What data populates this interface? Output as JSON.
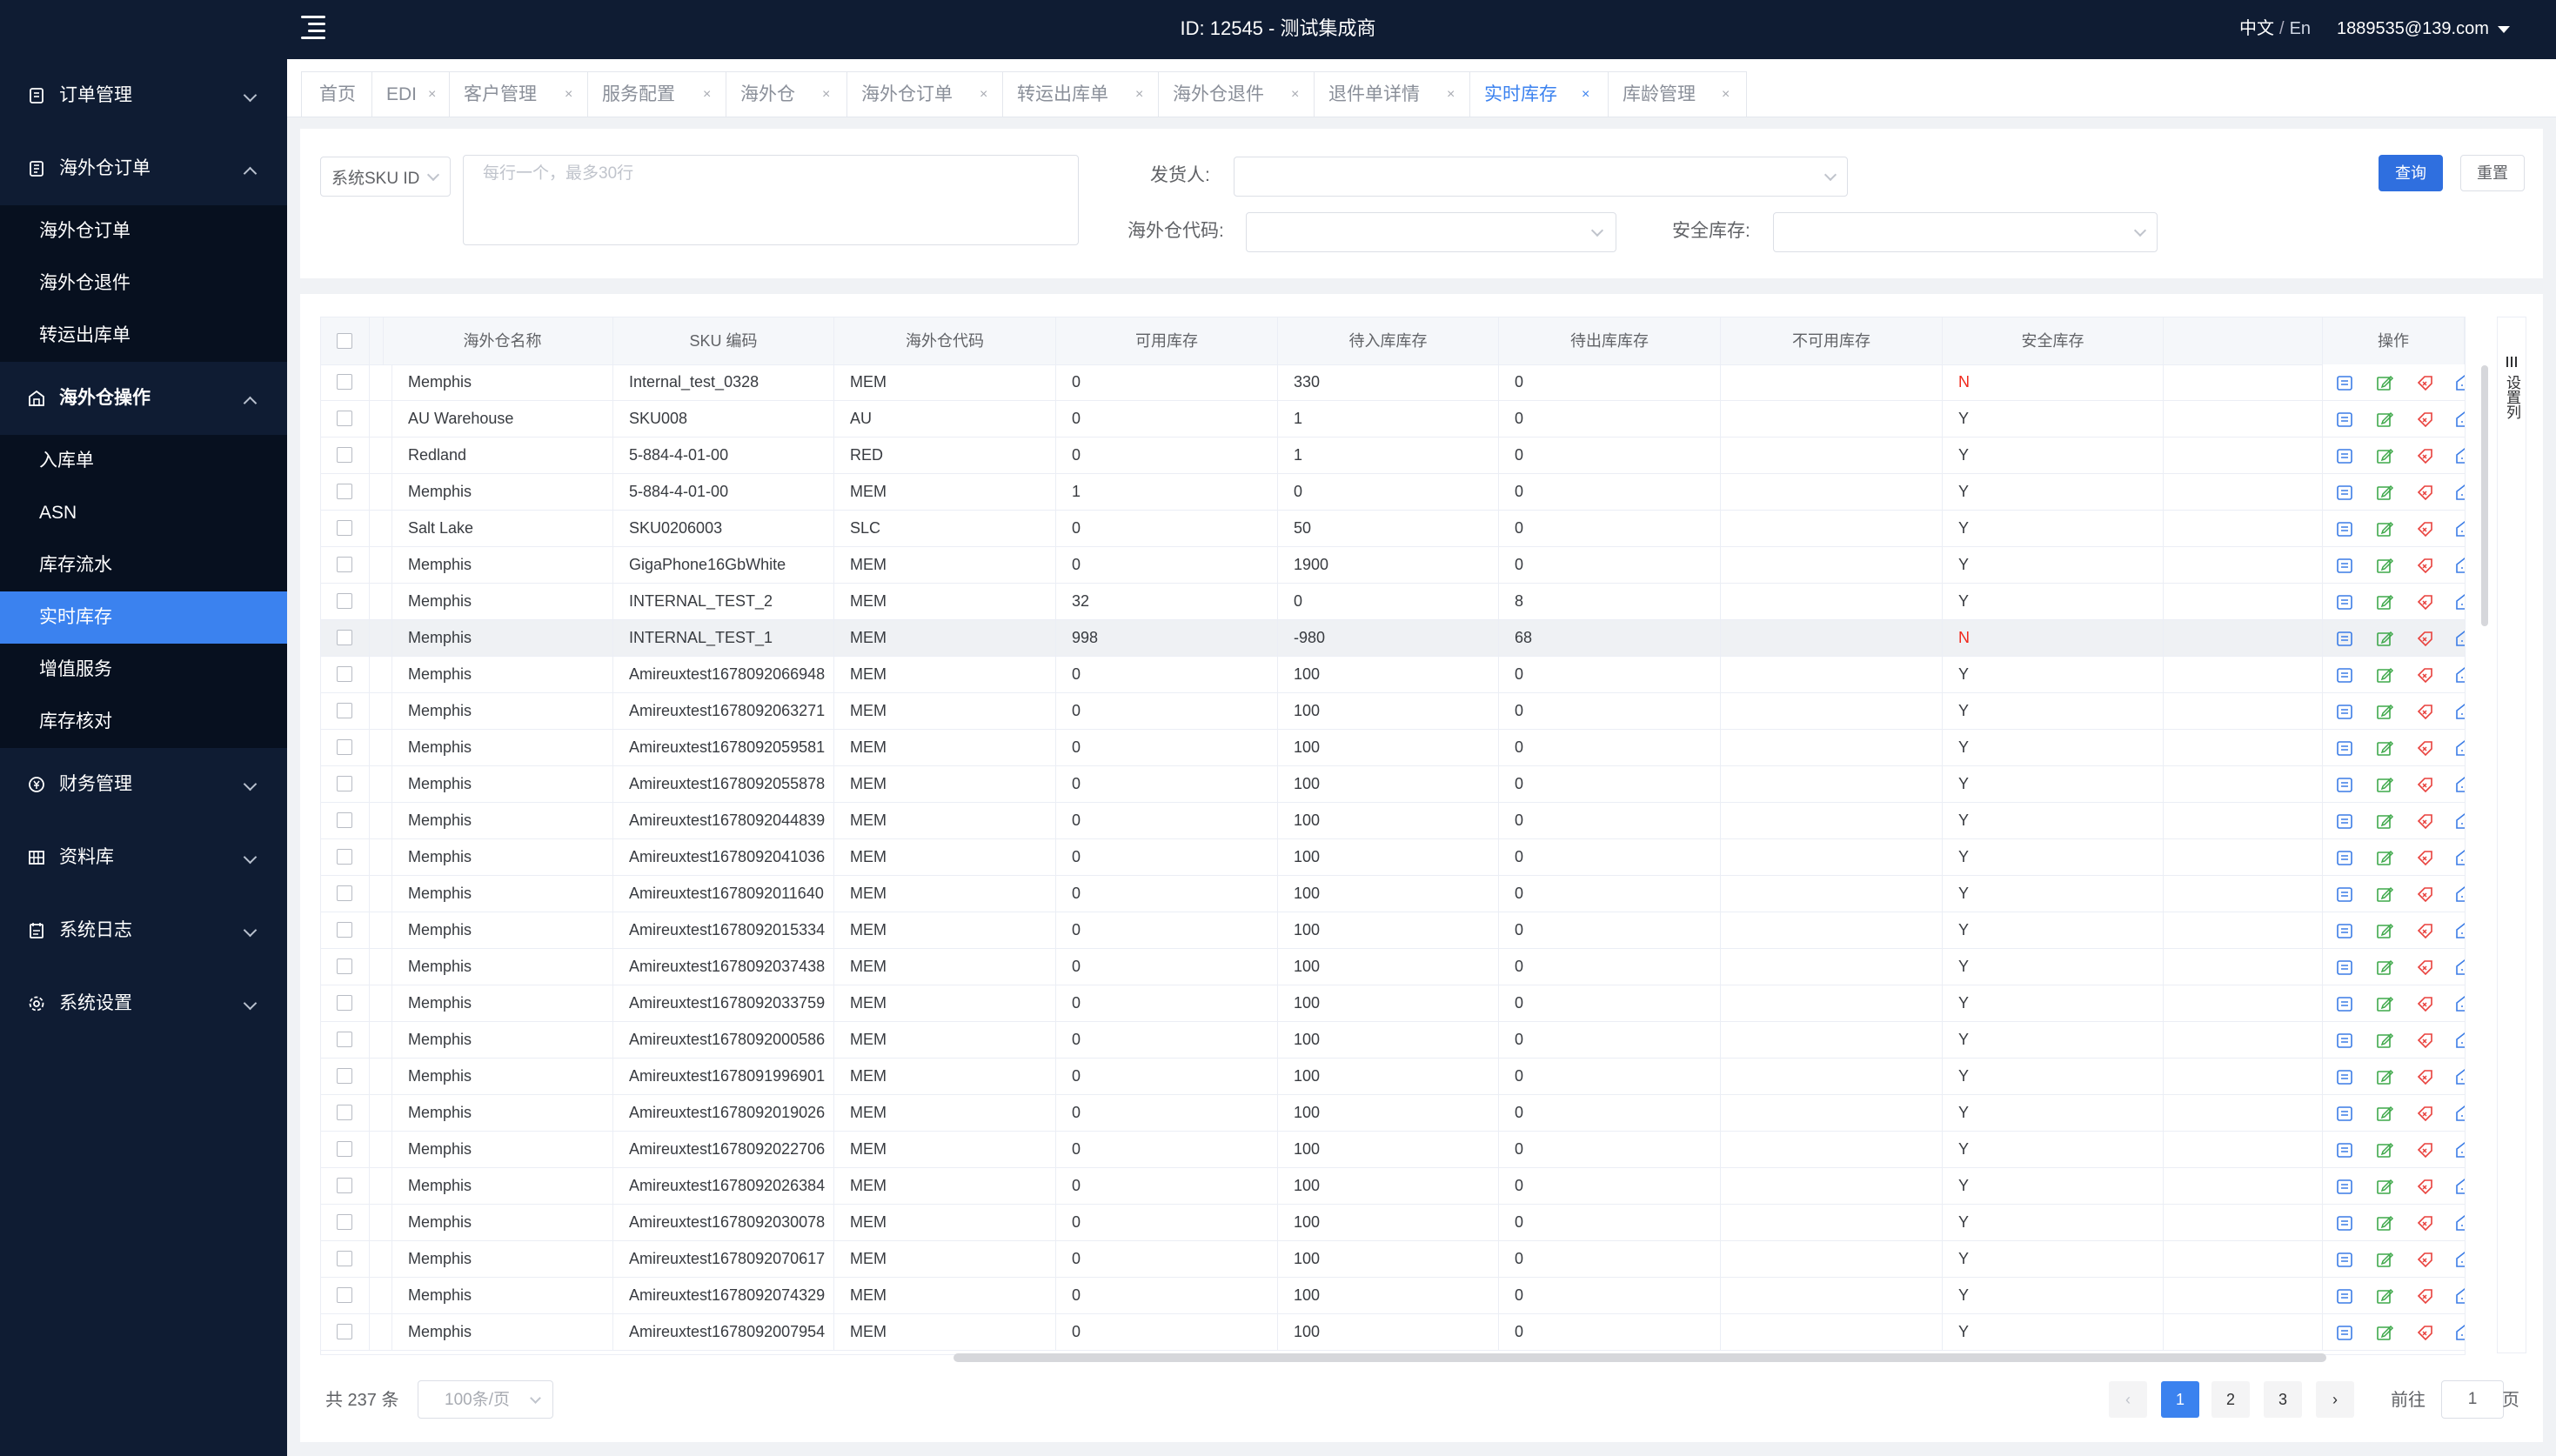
{
  "header": {
    "title": "ID: 12545 - 测试集成商",
    "lang_zh": "中文",
    "lang_sep": "/",
    "lang_en": "En",
    "user": "1889535@139.com"
  },
  "sidebar": {
    "groups": [
      {
        "label": "订单管理",
        "icon": "order-icon",
        "expanded": false
      },
      {
        "label": "海外仓订单",
        "icon": "warehouse-order-icon",
        "expanded": true,
        "items": [
          "海外仓订单",
          "海外仓退件",
          "转运出库单"
        ]
      },
      {
        "label": "海外仓操作",
        "icon": "warehouse-ops-icon",
        "expanded": true,
        "items": [
          "入库单",
          "ASN",
          "库存流水",
          "实时库存",
          "增值服务",
          "库存核对"
        ],
        "active_item": "实时库存"
      },
      {
        "label": "财务管理",
        "icon": "finance-icon",
        "expanded": false
      },
      {
        "label": "资料库",
        "icon": "library-icon",
        "expanded": false
      },
      {
        "label": "系统日志",
        "icon": "log-icon",
        "expanded": false
      },
      {
        "label": "系统设置",
        "icon": "gear-icon",
        "expanded": false
      }
    ]
  },
  "tabs": [
    {
      "label": "首页",
      "closable": false
    },
    {
      "label": "EDI",
      "closable": true
    },
    {
      "label": "客户管理",
      "closable": true
    },
    {
      "label": "服务配置",
      "closable": true
    },
    {
      "label": "海外仓",
      "closable": true
    },
    {
      "label": "海外仓订单",
      "closable": true
    },
    {
      "label": "转运出库单",
      "closable": true
    },
    {
      "label": "海外仓退件",
      "closable": true
    },
    {
      "label": "退件单详情",
      "closable": true
    },
    {
      "label": "实时库存",
      "closable": true,
      "active": true
    },
    {
      "label": "库龄管理",
      "closable": true
    }
  ],
  "tab_close_glyph": "×",
  "filters": {
    "sku_type_value": "系统SKU ID",
    "sku_placeholder": "每行一个，最多30行",
    "shipper_label": "发货人:",
    "warehouse_code_label": "海外仓代码:",
    "safety_stock_label": "安全库存:",
    "query_button": "查询",
    "reset_button": "重置"
  },
  "table": {
    "columns": [
      "海外仓名称",
      "SKU 编码",
      "海外仓代码",
      "可用库存",
      "待入库库存",
      "待出库库存",
      "不可用库存",
      "安全库存",
      "操作"
    ],
    "settings_label": "设置列",
    "highlight_row": 7,
    "rows": [
      [
        "Memphis",
        "Internal_test_0328",
        "MEM",
        "0",
        "330",
        "0",
        "",
        "N"
      ],
      [
        "AU Warehouse",
        "SKU008",
        "AU",
        "0",
        "1",
        "0",
        "",
        "Y"
      ],
      [
        "Redland",
        "5-884-4-01-00",
        "RED",
        "0",
        "1",
        "0",
        "",
        "Y"
      ],
      [
        "Memphis",
        "5-884-4-01-00",
        "MEM",
        "1",
        "0",
        "0",
        "",
        "Y"
      ],
      [
        "Salt Lake",
        "SKU0206003",
        "SLC",
        "0",
        "50",
        "0",
        "",
        "Y"
      ],
      [
        "Memphis",
        "GigaPhone16GbWhite",
        "MEM",
        "0",
        "1900",
        "0",
        "",
        "Y"
      ],
      [
        "Memphis",
        "INTERNAL_TEST_2",
        "MEM",
        "32",
        "0",
        "8",
        "",
        "Y"
      ],
      [
        "Memphis",
        "INTERNAL_TEST_1",
        "MEM",
        "998",
        "-980",
        "68",
        "",
        "N"
      ],
      [
        "Memphis",
        "Amireuxtest1678092066948",
        "MEM",
        "0",
        "100",
        "0",
        "",
        "Y"
      ],
      [
        "Memphis",
        "Amireuxtest1678092063271",
        "MEM",
        "0",
        "100",
        "0",
        "",
        "Y"
      ],
      [
        "Memphis",
        "Amireuxtest1678092059581",
        "MEM",
        "0",
        "100",
        "0",
        "",
        "Y"
      ],
      [
        "Memphis",
        "Amireuxtest1678092055878",
        "MEM",
        "0",
        "100",
        "0",
        "",
        "Y"
      ],
      [
        "Memphis",
        "Amireuxtest1678092044839",
        "MEM",
        "0",
        "100",
        "0",
        "",
        "Y"
      ],
      [
        "Memphis",
        "Amireuxtest1678092041036",
        "MEM",
        "0",
        "100",
        "0",
        "",
        "Y"
      ],
      [
        "Memphis",
        "Amireuxtest1678092011640",
        "MEM",
        "0",
        "100",
        "0",
        "",
        "Y"
      ],
      [
        "Memphis",
        "Amireuxtest1678092015334",
        "MEM",
        "0",
        "100",
        "0",
        "",
        "Y"
      ],
      [
        "Memphis",
        "Amireuxtest1678092037438",
        "MEM",
        "0",
        "100",
        "0",
        "",
        "Y"
      ],
      [
        "Memphis",
        "Amireuxtest1678092033759",
        "MEM",
        "0",
        "100",
        "0",
        "",
        "Y"
      ],
      [
        "Memphis",
        "Amireuxtest1678092000586",
        "MEM",
        "0",
        "100",
        "0",
        "",
        "Y"
      ],
      [
        "Memphis",
        "Amireuxtest1678091996901",
        "MEM",
        "0",
        "100",
        "0",
        "",
        "Y"
      ],
      [
        "Memphis",
        "Amireuxtest1678092019026",
        "MEM",
        "0",
        "100",
        "0",
        "",
        "Y"
      ],
      [
        "Memphis",
        "Amireuxtest1678092022706",
        "MEM",
        "0",
        "100",
        "0",
        "",
        "Y"
      ],
      [
        "Memphis",
        "Amireuxtest1678092026384",
        "MEM",
        "0",
        "100",
        "0",
        "",
        "Y"
      ],
      [
        "Memphis",
        "Amireuxtest1678092030078",
        "MEM",
        "0",
        "100",
        "0",
        "",
        "Y"
      ],
      [
        "Memphis",
        "Amireuxtest1678092070617",
        "MEM",
        "0",
        "100",
        "0",
        "",
        "Y"
      ],
      [
        "Memphis",
        "Amireuxtest1678092074329",
        "MEM",
        "0",
        "100",
        "0",
        "",
        "Y"
      ],
      [
        "Memphis",
        "Amireuxtest1678092007954",
        "MEM",
        "0",
        "100",
        "0",
        "",
        "Y"
      ]
    ],
    "row_ops": [
      "detail-icon",
      "edit-icon",
      "tag-icon",
      "warehouse-icon"
    ]
  },
  "pagination": {
    "total": "共 237 条",
    "page_size": "100条/页",
    "pages": [
      "1",
      "2",
      "3"
    ],
    "current": "1",
    "prev_glyph": "‹",
    "next_glyph": "›",
    "jump_prefix": "前往",
    "jump_value": "1",
    "jump_suffix": "页"
  },
  "colors": {
    "sidebar_bg": "#0f1c33",
    "submenu_bg": "#07101f",
    "accent": "#3b82ef",
    "danger": "#f0271b",
    "op_blue": "#3b7ce6",
    "op_green": "#3ea84a",
    "op_red": "#e8413d"
  }
}
